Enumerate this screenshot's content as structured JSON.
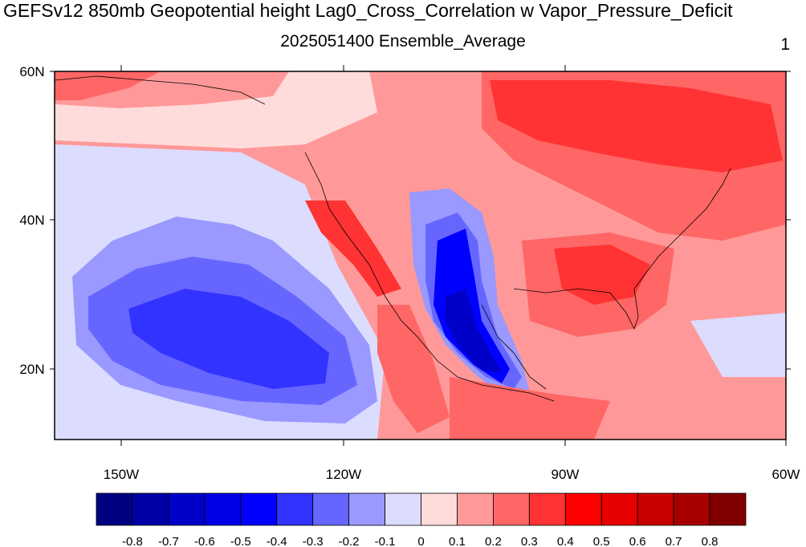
{
  "header": {
    "title": "GEFSv12 850mb Geopotential height Lag0_Cross_Correlation w Vapor_Pressure_Deficit",
    "subtitle": "2025051400 Ensemble_Average",
    "panel_number": "1"
  },
  "map": {
    "lat_labels": [
      "60N",
      "40N",
      "20N"
    ],
    "lon_labels": [
      "150W",
      "120W",
      "90W",
      "60W"
    ]
  },
  "colorbar": {
    "labels": [
      "-0.8",
      "-0.7",
      "-0.6",
      "-0.5",
      "-0.4",
      "-0.3",
      "-0.2",
      "-0.1",
      "0",
      "0.1",
      "0.2",
      "0.3",
      "0.4",
      "0.5",
      "0.6",
      "0.7",
      "0.8"
    ],
    "colors": [
      "#000080",
      "#0000a6",
      "#0000c8",
      "#0000e6",
      "#0000ff",
      "#3333ff",
      "#6666ff",
      "#9999ff",
      "#dcdcff",
      "#ffdcdc",
      "#ff9999",
      "#ff6666",
      "#ff3333",
      "#ff0000",
      "#e60000",
      "#c80000",
      "#a60000",
      "#800000"
    ]
  },
  "palette": {
    "deep_blue": "#0000d0",
    "mid_blue": "#6666ff",
    "light_blue": "#dcdcff",
    "light_red": "#ffdcdc",
    "mid_red": "#ff6666",
    "red": "#ff3333",
    "deep_red": "#ff0000"
  }
}
